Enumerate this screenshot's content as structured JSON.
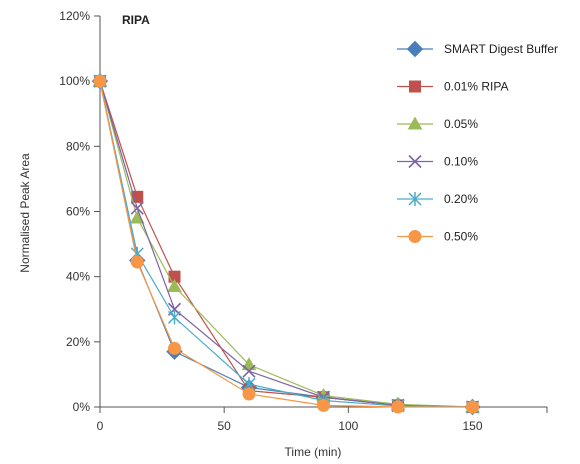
{
  "chart_data": {
    "type": "line",
    "title": "RIPA",
    "xlabel": "Time (min)",
    "ylabel": "Normalised Peak Area",
    "xlim": [
      0,
      180
    ],
    "ylim": [
      0,
      120
    ],
    "x_ticks": [
      "0",
      "50",
      "100",
      "150"
    ],
    "y_ticks": [
      "0%",
      "20%",
      "40%",
      "60%",
      "80%",
      "100%",
      "120%"
    ],
    "x": [
      0,
      15,
      30,
      60,
      90,
      120,
      150
    ],
    "grid": false,
    "legend_position": "right",
    "series": [
      {
        "name": "SMART Digest Buffer",
        "color": "#4a7ebb",
        "marker": "diamond",
        "values": [
          100,
          45,
          17,
          6,
          3,
          0.5,
          0
        ]
      },
      {
        "name": "0.01% RIPA",
        "color": "#c0504d",
        "marker": "square",
        "values": [
          100,
          64.5,
          40,
          5,
          3,
          0.5,
          0
        ]
      },
      {
        "name": "0.05%",
        "color": "#9bbb59",
        "marker": "triangle",
        "values": [
          100,
          58,
          37,
          13,
          3.5,
          0.8,
          0
        ]
      },
      {
        "name": "0.10%",
        "color": "#8064a2",
        "marker": "x",
        "values": [
          100,
          61,
          30,
          11,
          3,
          0.5,
          0
        ]
      },
      {
        "name": "0.20%",
        "color": "#4bacc6",
        "marker": "star",
        "values": [
          100,
          47,
          27.5,
          7,
          2,
          0.3,
          0
        ]
      },
      {
        "name": "0.50%",
        "color": "#f79646",
        "marker": "circle",
        "values": [
          100,
          44.5,
          18,
          4,
          0.5,
          0,
          0
        ]
      }
    ]
  }
}
